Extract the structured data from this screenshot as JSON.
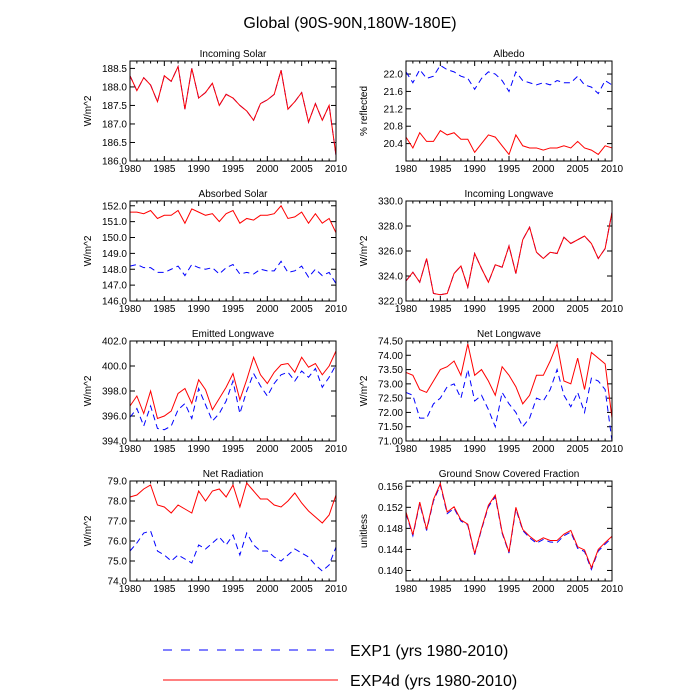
{
  "title": "Global (90S-90N,180W-180E)",
  "legend": {
    "placement": "bottom-center",
    "entries": [
      {
        "label": "EXP1 (yrs 1980-2010)",
        "color": "#0000ff",
        "dash": true
      },
      {
        "label": "EXP4d (yrs 1980-2010)",
        "color": "#ff0000",
        "dash": false
      }
    ]
  },
  "chart_data": [
    {
      "type": "line",
      "title": "Incoming Solar",
      "xlabel": "",
      "ylabel": "W/m^2",
      "xlim": [
        1980,
        2010
      ],
      "ylim": [
        186.0,
        188.7
      ],
      "yticks": [
        "188.5",
        "188.0",
        "187.5",
        "187.0",
        "186.5",
        "186.0"
      ],
      "xticks": [
        "1980",
        "1985",
        "1990",
        "1995",
        "2000",
        "2005",
        "2010"
      ],
      "x": [
        1980,
        1981,
        1982,
        1983,
        1984,
        1985,
        1986,
        1987,
        1988,
        1989,
        1990,
        1991,
        1992,
        1993,
        1994,
        1995,
        1996,
        1997,
        1998,
        1999,
        2000,
        2001,
        2002,
        2003,
        2004,
        2005,
        2006,
        2007,
        2008,
        2009,
        2010
      ],
      "series": [
        {
          "name": "EXP1 (yrs 1980-2010)",
          "values": [
            188.3,
            187.9,
            188.25,
            188.05,
            187.6,
            188.3,
            188.15,
            188.55,
            187.4,
            188.5,
            187.7,
            187.85,
            188.1,
            187.5,
            187.8,
            187.7,
            187.5,
            187.35,
            187.1,
            187.55,
            187.65,
            187.8,
            188.45,
            187.4,
            187.6,
            187.85,
            187.05,
            187.55,
            187.1,
            187.5,
            186.15
          ]
        },
        {
          "name": "EXP4d (yrs 1980-2010)",
          "values": [
            188.3,
            187.9,
            188.25,
            188.05,
            187.6,
            188.3,
            188.15,
            188.55,
            187.4,
            188.5,
            187.7,
            187.85,
            188.1,
            187.5,
            187.8,
            187.7,
            187.5,
            187.35,
            187.1,
            187.55,
            187.65,
            187.8,
            188.45,
            187.4,
            187.6,
            187.85,
            187.05,
            187.55,
            187.1,
            187.5,
            186.15
          ]
        }
      ]
    },
    {
      "type": "line",
      "title": "Albedo",
      "xlabel": "",
      "ylabel": "% reflected",
      "xlim": [
        1980,
        2010
      ],
      "ylim": [
        20.0,
        22.3
      ],
      "yticks": [
        "22.0",
        "21.6",
        "21.2",
        "20.8",
        "20.4"
      ],
      "xticks": [
        "1980",
        "1985",
        "1990",
        "1995",
        "2000",
        "2005",
        "2010"
      ],
      "x": [
        1980,
        1981,
        1982,
        1983,
        1984,
        1985,
        1986,
        1987,
        1988,
        1989,
        1990,
        1991,
        1992,
        1993,
        1994,
        1995,
        1996,
        1997,
        1998,
        1999,
        2000,
        2001,
        2002,
        2003,
        2004,
        2005,
        2006,
        2007,
        2008,
        2009,
        2010
      ],
      "series": [
        {
          "name": "EXP1 (yrs 1980-2010)",
          "values": [
            22.05,
            21.8,
            22.1,
            21.9,
            21.95,
            22.2,
            22.1,
            22.05,
            21.95,
            21.9,
            21.65,
            21.9,
            22.05,
            22.0,
            21.85,
            21.6,
            22.05,
            21.85,
            21.8,
            21.75,
            21.8,
            21.75,
            21.85,
            21.8,
            21.8,
            21.95,
            21.75,
            21.7,
            21.55,
            21.85,
            21.75
          ]
        },
        {
          "name": "EXP4d (yrs 1980-2010)",
          "values": [
            20.55,
            20.3,
            20.65,
            20.45,
            20.45,
            20.7,
            20.6,
            20.65,
            20.5,
            20.5,
            20.2,
            20.4,
            20.6,
            20.55,
            20.35,
            20.15,
            20.6,
            20.35,
            20.3,
            20.3,
            20.25,
            20.3,
            20.3,
            20.35,
            20.3,
            20.45,
            20.3,
            20.25,
            20.15,
            20.35,
            20.3
          ]
        }
      ]
    },
    {
      "type": "line",
      "title": "Absorbed Solar",
      "xlabel": "",
      "ylabel": "W/m^2",
      "xlim": [
        1980,
        2010
      ],
      "ylim": [
        146.0,
        152.3
      ],
      "yticks": [
        "152.0",
        "151.0",
        "150.0",
        "149.0",
        "148.0",
        "147.0",
        "146.0"
      ],
      "xticks": [
        "1980",
        "1985",
        "1990",
        "1995",
        "2000",
        "2005",
        "2010"
      ],
      "x": [
        1980,
        1981,
        1982,
        1983,
        1984,
        1985,
        1986,
        1987,
        1988,
        1989,
        1990,
        1991,
        1992,
        1993,
        1994,
        1995,
        1996,
        1997,
        1998,
        1999,
        2000,
        2001,
        2002,
        2003,
        2004,
        2005,
        2006,
        2007,
        2008,
        2009,
        2010
      ],
      "series": [
        {
          "name": "EXP1 (yrs 1980-2010)",
          "values": [
            148.2,
            148.3,
            148.1,
            148.1,
            147.8,
            147.8,
            148.0,
            148.2,
            147.6,
            148.3,
            148.1,
            148.0,
            148.1,
            147.7,
            148.1,
            148.3,
            147.7,
            147.8,
            147.7,
            148.0,
            147.9,
            147.9,
            148.5,
            147.8,
            147.9,
            148.2,
            147.5,
            148.0,
            147.6,
            147.8,
            147.1
          ]
        },
        {
          "name": "EXP4d (yrs 1980-2010)",
          "values": [
            151.6,
            151.6,
            151.5,
            151.7,
            151.2,
            151.4,
            151.4,
            151.7,
            150.9,
            151.8,
            151.6,
            151.4,
            151.5,
            151.0,
            151.5,
            151.7,
            150.9,
            151.2,
            151.1,
            151.4,
            151.4,
            151.5,
            152.0,
            151.2,
            151.3,
            151.6,
            150.9,
            151.5,
            150.9,
            151.2,
            150.3
          ]
        }
      ]
    },
    {
      "type": "line",
      "title": "Incoming Longwave",
      "xlabel": "",
      "ylabel": "W/m^2",
      "xlim": [
        1980,
        2010
      ],
      "ylim": [
        322.0,
        330.0
      ],
      "yticks": [
        "330.0",
        "328.0",
        "326.0",
        "324.0",
        "322.0"
      ],
      "xticks": [
        "1980",
        "1985",
        "1990",
        "1995",
        "2000",
        "2005",
        "2010"
      ],
      "x": [
        1980,
        1981,
        1982,
        1983,
        1984,
        1985,
        1986,
        1987,
        1988,
        1989,
        1990,
        1991,
        1992,
        1993,
        1994,
        1995,
        1996,
        1997,
        1998,
        1999,
        2000,
        2001,
        2002,
        2003,
        2004,
        2005,
        2006,
        2007,
        2008,
        2009,
        2010
      ],
      "series": [
        {
          "name": "EXP1 (yrs 1980-2010)",
          "values": [
            323.6,
            324.3,
            323.5,
            325.4,
            322.6,
            322.5,
            322.6,
            324.2,
            324.8,
            323.1,
            325.8,
            324.6,
            323.5,
            324.9,
            324.7,
            326.4,
            324.2,
            326.9,
            327.9,
            325.9,
            325.4,
            325.9,
            325.8,
            327.1,
            326.6,
            326.9,
            327.2,
            326.6,
            325.4,
            326.2,
            329.1
          ]
        },
        {
          "name": "EXP4d (yrs 1980-2010)",
          "values": [
            323.6,
            324.3,
            323.5,
            325.4,
            322.6,
            322.5,
            322.6,
            324.2,
            324.8,
            323.1,
            325.8,
            324.6,
            323.5,
            324.9,
            324.7,
            326.4,
            324.2,
            326.9,
            327.9,
            325.9,
            325.4,
            325.9,
            325.8,
            327.1,
            326.6,
            326.9,
            327.2,
            326.6,
            325.4,
            326.2,
            329.1
          ]
        }
      ]
    },
    {
      "type": "line",
      "title": "Emitted Longwave",
      "xlabel": "",
      "ylabel": "W/m^2",
      "xlim": [
        1980,
        2010
      ],
      "ylim": [
        394.0,
        402.0
      ],
      "yticks": [
        "402.0",
        "400.0",
        "398.0",
        "396.0",
        "394.0"
      ],
      "xticks": [
        "1980",
        "1985",
        "1990",
        "1995",
        "2000",
        "2005",
        "2010"
      ],
      "x": [
        1980,
        1981,
        1982,
        1983,
        1984,
        1985,
        1986,
        1987,
        1988,
        1989,
        1990,
        1991,
        1992,
        1993,
        1994,
        1995,
        1996,
        1997,
        1998,
        1999,
        2000,
        2001,
        2002,
        2003,
        2004,
        2005,
        2006,
        2007,
        2008,
        2009,
        2010
      ],
      "series": [
        {
          "name": "EXP1 (yrs 1980-2010)",
          "values": [
            395.9,
            396.6,
            395.2,
            396.8,
            395.0,
            394.9,
            395.2,
            396.5,
            397.0,
            395.8,
            398.2,
            396.9,
            395.6,
            396.2,
            397.2,
            398.8,
            396.2,
            398.0,
            399.4,
            398.4,
            397.6,
            398.6,
            399.3,
            399.5,
            398.8,
            399.6,
            399.1,
            399.8,
            398.3,
            399.1,
            400.1
          ]
        },
        {
          "name": "EXP4d (yrs 1980-2010)",
          "values": [
            396.8,
            397.6,
            396.2,
            398.0,
            395.8,
            396.0,
            396.4,
            397.8,
            398.2,
            397.0,
            398.9,
            398.1,
            396.5,
            397.4,
            398.3,
            399.4,
            397.3,
            398.9,
            400.7,
            399.3,
            398.6,
            399.5,
            400.1,
            400.2,
            399.5,
            400.7,
            399.9,
            400.2,
            399.3,
            400.0,
            401.2
          ]
        }
      ]
    },
    {
      "type": "line",
      "title": "Net Longwave",
      "xlabel": "",
      "ylabel": "W/m^2",
      "xlim": [
        1980,
        2010
      ],
      "ylim": [
        71.0,
        74.5
      ],
      "yticks": [
        "74.50",
        "74.00",
        "73.50",
        "73.00",
        "72.50",
        "72.00",
        "71.50",
        "71.00"
      ],
      "xticks": [
        "1980",
        "1985",
        "1990",
        "1995",
        "2000",
        "2005",
        "2010"
      ],
      "x": [
        1980,
        1981,
        1982,
        1983,
        1984,
        1985,
        1986,
        1987,
        1988,
        1989,
        1990,
        1991,
        1992,
        1993,
        1994,
        1995,
        1996,
        1997,
        1998,
        1999,
        2000,
        2001,
        2002,
        2003,
        2004,
        2005,
        2006,
        2007,
        2008,
        2009,
        2010
      ],
      "series": [
        {
          "name": "EXP1 (yrs 1980-2010)",
          "values": [
            72.7,
            72.6,
            71.8,
            71.8,
            72.3,
            72.5,
            72.9,
            73.0,
            72.5,
            73.5,
            72.4,
            72.6,
            72.1,
            71.5,
            72.7,
            72.3,
            72.0,
            71.5,
            71.8,
            72.5,
            72.4,
            72.8,
            73.5,
            72.6,
            72.2,
            72.7,
            72.0,
            73.2,
            73.1,
            72.8,
            71.0
          ]
        },
        {
          "name": "EXP4d (yrs 1980-2010)",
          "values": [
            73.4,
            73.3,
            72.8,
            72.7,
            73.1,
            73.5,
            73.6,
            73.8,
            73.3,
            74.4,
            73.3,
            73.5,
            73.1,
            72.6,
            73.6,
            73.3,
            72.9,
            72.3,
            72.6,
            73.3,
            73.3,
            73.8,
            74.4,
            73.1,
            73.0,
            73.9,
            72.8,
            74.1,
            73.9,
            73.7,
            71.8
          ]
        }
      ]
    },
    {
      "type": "line",
      "title": "Net Radiation",
      "xlabel": "",
      "ylabel": "W/m^2",
      "xlim": [
        1980,
        2010
      ],
      "ylim": [
        74.0,
        79.0
      ],
      "yticks": [
        "79.0",
        "78.0",
        "77.0",
        "76.0",
        "75.0",
        "74.0"
      ],
      "xticks": [
        "1980",
        "1985",
        "1990",
        "1995",
        "2000",
        "2005",
        "2010"
      ],
      "x": [
        1980,
        1981,
        1982,
        1983,
        1984,
        1985,
        1986,
        1987,
        1988,
        1989,
        1990,
        1991,
        1992,
        1993,
        1994,
        1995,
        1996,
        1997,
        1998,
        1999,
        2000,
        2001,
        2002,
        2003,
        2004,
        2005,
        2006,
        2007,
        2008,
        2009,
        2010
      ],
      "series": [
        {
          "name": "EXP1 (yrs 1980-2010)",
          "values": [
            75.5,
            75.9,
            76.4,
            76.5,
            75.5,
            75.3,
            75.0,
            75.3,
            75.1,
            74.9,
            75.8,
            75.6,
            75.9,
            76.2,
            75.8,
            76.3,
            75.3,
            76.4,
            75.8,
            75.5,
            75.5,
            75.2,
            75.0,
            75.3,
            75.6,
            75.4,
            75.2,
            74.8,
            74.5,
            74.8,
            75.7
          ]
        },
        {
          "name": "EXP4d (yrs 1980-2010)",
          "values": [
            78.2,
            78.3,
            78.6,
            78.8,
            77.8,
            77.7,
            77.4,
            77.8,
            77.6,
            77.4,
            78.5,
            78.0,
            78.5,
            78.6,
            78.2,
            78.8,
            77.7,
            78.9,
            78.5,
            78.1,
            78.1,
            77.8,
            77.7,
            78.0,
            78.4,
            77.9,
            77.5,
            77.2,
            76.9,
            77.3,
            78.3
          ]
        }
      ]
    },
    {
      "type": "line",
      "title": "Ground Snow Covered Fraction",
      "xlabel": "",
      "ylabel": "unitless",
      "xlim": [
        1980,
        2010
      ],
      "ylim": [
        0.138,
        0.157
      ],
      "yticks": [
        "0.156",
        "0.152",
        "0.148",
        "0.144",
        "0.140"
      ],
      "xticks": [
        "1980",
        "1985",
        "1990",
        "1995",
        "2000",
        "2005",
        "2010"
      ],
      "x": [
        1980,
        1981,
        1982,
        1983,
        1984,
        1985,
        1986,
        1987,
        1988,
        1989,
        1990,
        1991,
        1992,
        1993,
        1994,
        1995,
        1996,
        1997,
        1998,
        1999,
        2000,
        2001,
        2002,
        2003,
        2004,
        2005,
        2006,
        2007,
        2008,
        2009,
        2010
      ],
      "series": [
        {
          "name": "EXP1 (yrs 1980-2010)",
          "values": [
            0.1508,
            0.1466,
            0.1527,
            0.1476,
            0.1532,
            0.1562,
            0.1508,
            0.1518,
            0.1494,
            0.1486,
            0.143,
            0.1478,
            0.1521,
            0.154,
            0.1471,
            0.1433,
            0.1517,
            0.1476,
            0.1462,
            0.1452,
            0.1459,
            0.1454,
            0.1453,
            0.1466,
            0.1473,
            0.1442,
            0.1436,
            0.1402,
            0.1437,
            0.145,
            0.1462
          ]
        },
        {
          "name": "EXP4d (yrs 1980-2010)",
          "values": [
            0.1511,
            0.1468,
            0.153,
            0.1478,
            0.1535,
            0.1565,
            0.1511,
            0.1521,
            0.1496,
            0.1488,
            0.1432,
            0.148,
            0.1524,
            0.1543,
            0.1473,
            0.1435,
            0.152,
            0.1478,
            0.1465,
            0.1455,
            0.1462,
            0.1457,
            0.1457,
            0.1469,
            0.1476,
            0.1445,
            0.1439,
            0.1405,
            0.144,
            0.1453,
            0.1465
          ]
        }
      ]
    }
  ]
}
